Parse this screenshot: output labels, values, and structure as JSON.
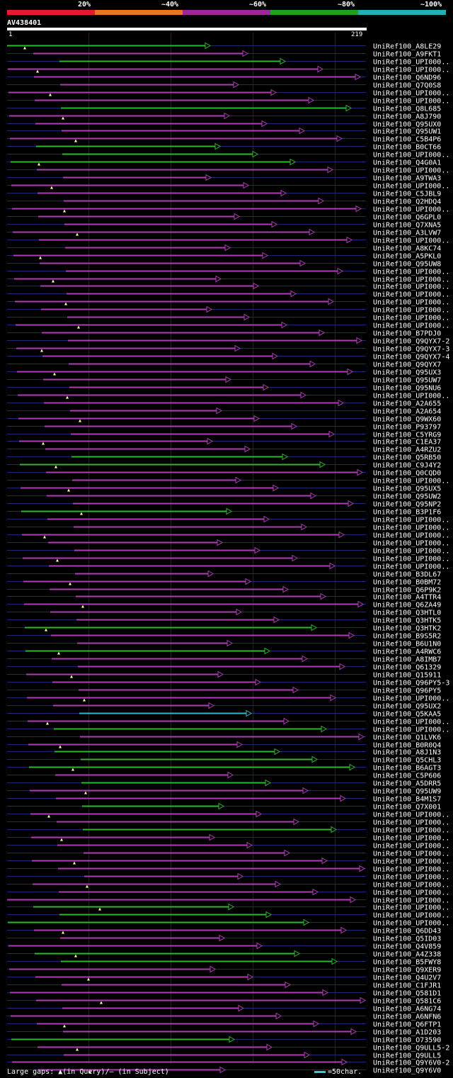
{
  "legend": {
    "segments": [
      {
        "color": "#e8192c",
        "label": "20%"
      },
      {
        "color": "#e87722",
        "label": "~40%"
      },
      {
        "color": "#9a2a9a",
        "label": "~60%"
      },
      {
        "color": "#22a022",
        "label": "~80%"
      },
      {
        "color": "#22b0b8",
        "label": "~100%"
      }
    ]
  },
  "query": {
    "name": "AV438401",
    "start": "1",
    "end": "219"
  },
  "colors": {
    "magenta": "#b13cb8",
    "green": "#2bb82b",
    "cyan": "#33b8c8",
    "thin": "#1b2a6b"
  },
  "hits": [
    {
      "label": "UniRef100_A8LE29",
      "color": "green"
    },
    {
      "label": "UniRef100_A9FKT1",
      "color": "magenta"
    },
    {
      "label": "UniRef100_UPI000..",
      "color": "green"
    },
    {
      "label": "UniRef100_UPI000..",
      "color": "magenta"
    },
    {
      "label": "UniRef100_Q6ND96",
      "color": "magenta"
    },
    {
      "label": "UniRef100_Q7Q0S8",
      "color": "magenta"
    },
    {
      "label": "UniRef100_UPI000..",
      "color": "magenta"
    },
    {
      "label": "UniRef100_UPI000..",
      "color": "magenta"
    },
    {
      "label": "UniRef100_Q8L685",
      "color": "green"
    },
    {
      "label": "UniRef100_A8J790",
      "color": "magenta"
    },
    {
      "label": "UniRef100_Q95UX0",
      "color": "magenta"
    },
    {
      "label": "UniRef100_Q95UW1",
      "color": "magenta"
    },
    {
      "label": "UniRef100_C5B4P6",
      "color": "magenta"
    },
    {
      "label": "UniRef100_B0CT66",
      "color": "green"
    },
    {
      "label": "UniRef100_UPI000..",
      "color": "green"
    },
    {
      "label": "UniRef100_Q4G0A1",
      "color": "green"
    },
    {
      "label": "UniRef100_UPI000..",
      "color": "magenta"
    },
    {
      "label": "UniRef100_A9TWA3",
      "color": "magenta"
    },
    {
      "label": "UniRef100_UPI000..",
      "color": "magenta"
    },
    {
      "label": "UniRef100_C5JBL9",
      "color": "magenta"
    },
    {
      "label": "UniRef100_Q2HDQ4",
      "color": "magenta"
    },
    {
      "label": "UniRef100_UPI000..",
      "color": "magenta"
    },
    {
      "label": "UniRef100_Q6GPL0",
      "color": "magenta"
    },
    {
      "label": "UniRef100_Q7XNA5",
      "color": "magenta"
    },
    {
      "label": "UniRef100_A3LVW7",
      "color": "magenta"
    },
    {
      "label": "UniRef100_UPI000..",
      "color": "magenta"
    },
    {
      "label": "UniRef100_A8KC74",
      "color": "magenta"
    },
    {
      "label": "UniRef100_A5PKL0",
      "color": "magenta"
    },
    {
      "label": "UniRef100_Q95UW8",
      "color": "magenta"
    },
    {
      "label": "UniRef100_UPI000..",
      "color": "magenta"
    },
    {
      "label": "UniRef100_UPI000..",
      "color": "magenta"
    },
    {
      "label": "UniRef100_UPI000..",
      "color": "magenta"
    },
    {
      "label": "UniRef100_UPI000..",
      "color": "magenta"
    },
    {
      "label": "UniRef100_UPI000..",
      "color": "magenta"
    },
    {
      "label": "UniRef100_UPI000..",
      "color": "magenta"
    },
    {
      "label": "UniRef100_UPI000..",
      "color": "magenta"
    },
    {
      "label": "UniRef100_UPI000..",
      "color": "magenta"
    },
    {
      "label": "UniRef100_B7PDJ0",
      "color": "magenta"
    },
    {
      "label": "UniRef100_Q9QYX7-2",
      "color": "magenta"
    },
    {
      "label": "UniRef100_Q9QYX7-3",
      "color": "magenta"
    },
    {
      "label": "UniRef100_Q9QYX7-4",
      "color": "magenta"
    },
    {
      "label": "UniRef100_Q9QYX7",
      "color": "magenta"
    },
    {
      "label": "UniRef100_Q95UX3",
      "color": "magenta"
    },
    {
      "label": "UniRef100_Q95UW7",
      "color": "magenta"
    },
    {
      "label": "UniRef100_Q95NU6",
      "color": "magenta"
    },
    {
      "label": "UniRef100_UPI000..",
      "color": "magenta"
    },
    {
      "label": "UniRef100_A2A655",
      "color": "magenta"
    },
    {
      "label": "UniRef100_A2A654",
      "color": "magenta"
    },
    {
      "label": "UniRef100_Q9WX60",
      "color": "magenta"
    },
    {
      "label": "UniRef100_P93797",
      "color": "magenta"
    },
    {
      "label": "UniRef100_C5YRG9",
      "color": "magenta"
    },
    {
      "label": "UniRef100_C1EA37",
      "color": "magenta"
    },
    {
      "label": "UniRef100_A4RZU2",
      "color": "magenta"
    },
    {
      "label": "UniRef100_Q5RB50",
      "color": "green"
    },
    {
      "label": "UniRef100_C9J4Y2",
      "color": "green"
    },
    {
      "label": "UniRef100_Q0CQD0",
      "color": "magenta"
    },
    {
      "label": "UniRef100_UPI000..",
      "color": "magenta"
    },
    {
      "label": "UniRef100_Q95UX5",
      "color": "magenta"
    },
    {
      "label": "UniRef100_Q95UW2",
      "color": "magenta"
    },
    {
      "label": "UniRef100_Q95NP2",
      "color": "magenta"
    },
    {
      "label": "UniRef100_B3P1F6",
      "color": "green"
    },
    {
      "label": "UniRef100_UPI000..",
      "color": "magenta"
    },
    {
      "label": "UniRef100_UPI000..",
      "color": "magenta"
    },
    {
      "label": "UniRef100_UPI000..",
      "color": "magenta"
    },
    {
      "label": "UniRef100_UPI000..",
      "color": "magenta"
    },
    {
      "label": "UniRef100_UPI000..",
      "color": "magenta"
    },
    {
      "label": "UniRef100_UPI000..",
      "color": "magenta"
    },
    {
      "label": "UniRef100_UPI000..",
      "color": "magenta"
    },
    {
      "label": "UniRef100_B3DL67",
      "color": "magenta"
    },
    {
      "label": "UniRef100_B0BM72",
      "color": "magenta"
    },
    {
      "label": "UniRef100_Q6P9K2",
      "color": "magenta"
    },
    {
      "label": "UniRef100_A4TTR4",
      "color": "magenta"
    },
    {
      "label": "UniRef100_Q6ZA49",
      "color": "magenta"
    },
    {
      "label": "UniRef100_Q3HTL0",
      "color": "magenta"
    },
    {
      "label": "UniRef100_Q3HTK5",
      "color": "magenta"
    },
    {
      "label": "UniRef100_Q3HTK2",
      "color": "green"
    },
    {
      "label": "UniRef100_B9S5R2",
      "color": "magenta"
    },
    {
      "label": "UniRef100_B6U1N0",
      "color": "magenta"
    },
    {
      "label": "UniRef100_A4RWC6",
      "color": "green"
    },
    {
      "label": "UniRef100_A8IMB7",
      "color": "magenta"
    },
    {
      "label": "UniRef100_Q61329",
      "color": "magenta"
    },
    {
      "label": "UniRef100_Q15911",
      "color": "magenta"
    },
    {
      "label": "UniRef100_Q96PY5-3",
      "color": "magenta"
    },
    {
      "label": "UniRef100_Q96PY5",
      "color": "magenta"
    },
    {
      "label": "UniRef100_UPI000..",
      "color": "magenta"
    },
    {
      "label": "UniRef100_Q95UX2",
      "color": "magenta"
    },
    {
      "label": "UniRef100_Q5KAA5",
      "color": "cyan"
    },
    {
      "label": "UniRef100_UPI000..",
      "color": "magenta"
    },
    {
      "label": "UniRef100_UPI000..",
      "color": "green"
    },
    {
      "label": "UniRef100_Q1LVK6",
      "color": "magenta"
    },
    {
      "label": "UniRef100_B0R0Q4",
      "color": "magenta"
    },
    {
      "label": "UniRef100_A8J1N3",
      "color": "green"
    },
    {
      "label": "UniRef100_Q5CHL3",
      "color": "green"
    },
    {
      "label": "UniRef100_B6AGT3",
      "color": "green"
    },
    {
      "label": "UniRef100_C5P606",
      "color": "magenta"
    },
    {
      "label": "UniRef100_A5DRR5",
      "color": "green"
    },
    {
      "label": "UniRef100_Q95UW9",
      "color": "magenta"
    },
    {
      "label": "UniRef100_B4M1S7",
      "color": "magenta"
    },
    {
      "label": "UniRef100_Q7X001",
      "color": "green"
    },
    {
      "label": "UniRef100_UPI000..",
      "color": "magenta"
    },
    {
      "label": "UniRef100_UPI000..",
      "color": "magenta"
    },
    {
      "label": "UniRef100_UPI000..",
      "color": "green"
    },
    {
      "label": "UniRef100_UPI000..",
      "color": "magenta"
    },
    {
      "label": "UniRef100_UPI000..",
      "color": "magenta"
    },
    {
      "label": "UniRef100_UPI000..",
      "color": "magenta"
    },
    {
      "label": "UniRef100_UPI000..",
      "color": "magenta"
    },
    {
      "label": "UniRef100_UPI000..",
      "color": "magenta"
    },
    {
      "label": "UniRef100_UPI000..",
      "color": "magenta"
    },
    {
      "label": "UniRef100_UPI000..",
      "color": "magenta"
    },
    {
      "label": "UniRef100_UPI000..",
      "color": "magenta"
    },
    {
      "label": "UniRef100_UPI000..",
      "color": "magenta"
    },
    {
      "label": "UniRef100_UPI000..",
      "color": "green"
    },
    {
      "label": "UniRef100_UPI000..",
      "color": "green"
    },
    {
      "label": "UniRef100_UPI000..",
      "color": "green"
    },
    {
      "label": "UniRef100_Q6DD43",
      "color": "magenta"
    },
    {
      "label": "UniRef100_Q5ID03",
      "color": "magenta"
    },
    {
      "label": "UniRef100_Q4V859",
      "color": "magenta"
    },
    {
      "label": "UniRef100_A4Z338",
      "color": "green"
    },
    {
      "label": "UniRef100_B5FWY8",
      "color": "green"
    },
    {
      "label": "UniRef100_Q9XER9",
      "color": "magenta"
    },
    {
      "label": "UniRef100_Q4U2V7",
      "color": "magenta"
    },
    {
      "label": "UniRef100_C1FJR1",
      "color": "magenta"
    },
    {
      "label": "UniRef100_Q581D1",
      "color": "magenta"
    },
    {
      "label": "UniRef100_Q581C6",
      "color": "magenta"
    },
    {
      "label": "UniRef100_A6NG74",
      "color": "magenta"
    },
    {
      "label": "UniRef100_A6NFN6",
      "color": "magenta"
    },
    {
      "label": "UniRef100_Q6FTP1",
      "color": "magenta"
    },
    {
      "label": "UniRef100_A1D203",
      "color": "magenta"
    },
    {
      "label": "UniRef100_O73590",
      "color": "green"
    },
    {
      "label": "UniRef100_Q9ULL5-2",
      "color": "magenta"
    },
    {
      "label": "UniRef100_Q9ULL5",
      "color": "magenta"
    },
    {
      "label": "UniRef100_Q9Y6V0-2",
      "color": "magenta"
    },
    {
      "label": "UniRef100_Q9Y6V0",
      "color": "magenta"
    }
  ],
  "footer": {
    "left": "Large gaps: ▲(in Query)/— (in Subject)",
    "right": "=50char."
  }
}
